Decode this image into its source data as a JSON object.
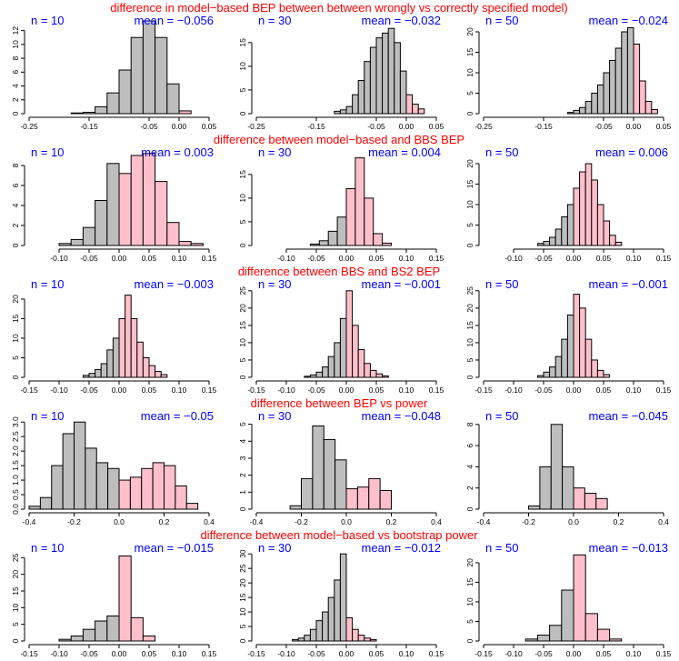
{
  "colors": {
    "negative": "#bebebe",
    "positive": "#ffc0cb",
    "title": "#ff0000",
    "label": "#0000ff"
  },
  "chart_data": [
    {
      "type": "histogram",
      "title": "difference in model−based BEP between between wrongly vs correctly specified model)",
      "xlim": [
        -0.25,
        0.05
      ],
      "xticks": [
        "-0.25",
        "-0.15",
        "-0.05",
        "0.00",
        "0.05"
      ],
      "xtick_values": [
        -0.25,
        -0.15,
        -0.05,
        0.0,
        0.05
      ],
      "bin_width": 0.02,
      "panels": [
        {
          "n_label": "n = 10",
          "mean_label": "mean = −0.056",
          "ylim": [
            0,
            13
          ],
          "yticks": [
            "0",
            "2",
            "4",
            "6",
            "8",
            "10",
            "12"
          ],
          "ytick_values": [
            0,
            2,
            4,
            6,
            8,
            10,
            12
          ],
          "bin_start": -0.18,
          "counts": [
            0.1,
            0.2,
            1,
            3,
            6.3,
            11,
            13.4,
            11,
            4.3,
            0.4
          ]
        },
        {
          "n_label": "n = 30",
          "mean_label": "mean = −0.032",
          "ylim": [
            0,
            19
          ],
          "yticks": [
            "0",
            "5",
            "10",
            "15"
          ],
          "ytick_values": [
            0,
            5,
            10,
            15
          ],
          "bin_start": -0.12,
          "bin_width": 0.01,
          "counts": [
            0.5,
            0.8,
            1.5,
            4,
            7,
            11,
            14,
            16,
            17,
            18,
            15,
            9,
            4,
            2,
            1
          ]
        },
        {
          "n_label": "n = 50",
          "mean_label": "mean = −0.024",
          "ylim": [
            0,
            22
          ],
          "yticks": [
            "0",
            "5",
            "10",
            "15",
            "20"
          ],
          "ytick_values": [
            0,
            5,
            10,
            15,
            20
          ],
          "bin_start": -0.11,
          "bin_width": 0.01,
          "counts": [
            0.3,
            0.8,
            1.5,
            3,
            5,
            7,
            10,
            13,
            16,
            20,
            21,
            17,
            8,
            3,
            1
          ]
        }
      ]
    },
    {
      "type": "histogram",
      "title": "difference between model−based and BBS BEP",
      "xlim": [
        -0.15,
        0.15
      ],
      "xticks": [
        "-0.10",
        "-0.05",
        "0.00",
        "0.05",
        "0.10",
        "0.15"
      ],
      "xtick_values": [
        -0.1,
        -0.05,
        0.0,
        0.05,
        0.1,
        0.15
      ],
      "panels": [
        {
          "n_label": "n = 10",
          "mean_label": "mean = 0.003",
          "ylim": [
            0,
            9
          ],
          "yticks": [
            "0",
            "2",
            "4",
            "6",
            "8"
          ],
          "ytick_values": [
            0,
            2,
            4,
            6,
            8
          ],
          "bin_start": -0.1,
          "bin_width": 0.02,
          "counts": [
            0.2,
            0.6,
            1.8,
            4.5,
            8.2,
            7.2,
            9,
            9.2,
            6.4,
            2.3,
            0.4,
            0.2
          ]
        },
        {
          "n_label": "n = 30",
          "mean_label": "mean = 0.004",
          "ylim": [
            0,
            19
          ],
          "yticks": [
            "0",
            "5",
            "10",
            "15"
          ],
          "ytick_values": [
            0,
            5,
            10,
            15
          ],
          "bin_start": -0.06,
          "bin_width": 0.015,
          "counts": [
            0.3,
            1,
            3,
            6,
            12,
            18.5,
            10,
            2.5,
            0.5
          ]
        },
        {
          "n_label": "n = 50",
          "mean_label": "mean = 0.006",
          "ylim": [
            0,
            22
          ],
          "yticks": [
            "0",
            "5",
            "10",
            "15",
            "20"
          ],
          "ytick_values": [
            0,
            5,
            10,
            15,
            20
          ],
          "bin_start": -0.06,
          "bin_width": 0.01,
          "counts": [
            0.5,
            1,
            2,
            4,
            7,
            10,
            14,
            18,
            20,
            16,
            10,
            6,
            2.5,
            0.8
          ]
        }
      ]
    },
    {
      "type": "histogram",
      "title": "difference between BBS and BS2 BEP",
      "xlim": [
        -0.15,
        0.15
      ],
      "xticks": [
        "-0.15",
        "-0.10",
        "-0.05",
        "0.00",
        "0.05",
        "0.10",
        "0.15"
      ],
      "xtick_values": [
        -0.15,
        -0.1,
        -0.05,
        0.0,
        0.05,
        0.1,
        0.15
      ],
      "panels": [
        {
          "n_label": "n = 10",
          "mean_label": "mean = −0.003",
          "ylim": [
            0,
            23
          ],
          "yticks": [
            "0",
            "5",
            "10",
            "15",
            "20"
          ],
          "ytick_values": [
            0,
            5,
            10,
            15,
            20
          ],
          "bin_start": -0.06,
          "bin_width": 0.01,
          "counts": [
            0.5,
            1,
            2,
            3.5,
            7,
            10,
            15,
            21,
            15,
            9,
            5,
            3,
            1.5,
            0.7
          ]
        },
        {
          "n_label": "n = 30",
          "mean_label": "mean = −0.001",
          "ylim": [
            0,
            26
          ],
          "yticks": [
            "0",
            "5",
            "10",
            "15",
            "20",
            "25"
          ],
          "ytick_values": [
            0,
            5,
            10,
            15,
            20,
            25
          ],
          "bin_start": -0.07,
          "bin_width": 0.01,
          "counts": [
            0.3,
            0.7,
            1.5,
            3,
            6,
            10,
            17,
            25,
            15,
            8,
            4,
            2,
            1,
            0.4
          ]
        },
        {
          "n_label": "n = 50",
          "mean_label": "mean = −0.001",
          "ylim": [
            0,
            26
          ],
          "yticks": [
            "0",
            "5",
            "10",
            "15",
            "20",
            "25"
          ],
          "ytick_values": [
            0,
            5,
            10,
            15,
            20,
            25
          ],
          "bin_start": -0.06,
          "bin_width": 0.01,
          "counts": [
            0.5,
            1.5,
            3,
            6,
            11,
            18,
            24,
            20,
            11,
            5,
            2,
            0.8
          ]
        }
      ]
    },
    {
      "type": "histogram",
      "title": "difference between BEP vs power",
      "xlim": [
        -0.4,
        0.4
      ],
      "xticks": [
        "-0.4",
        "-0.2",
        "0.0",
        "0.2",
        "0.4"
      ],
      "xtick_values": [
        -0.4,
        -0.2,
        0.0,
        0.2,
        0.4
      ],
      "panels": [
        {
          "n_label": "n = 10",
          "mean_label": "mean = −0.05",
          "ylim": [
            0,
            3.1
          ],
          "yticks": [
            "0.0",
            "0.5",
            "1.0",
            "1.5",
            "2.0",
            "2.5",
            "3.0"
          ],
          "ytick_values": [
            0,
            0.5,
            1,
            1.5,
            2,
            2.5,
            3
          ],
          "bin_start": -0.4,
          "bin_width": 0.05,
          "counts": [
            0.1,
            0.4,
            1.5,
            2.6,
            3.0,
            2.1,
            1.6,
            1.4,
            1.0,
            1.1,
            1.4,
            1.6,
            1.5,
            0.8,
            0.2
          ]
        },
        {
          "n_label": "n = 30",
          "mean_label": "mean = −0.048",
          "ylim": [
            0,
            5.3
          ],
          "yticks": [
            "0",
            "1",
            "2",
            "3",
            "4",
            "5"
          ],
          "ytick_values": [
            0,
            1,
            2,
            3,
            4,
            5
          ],
          "bin_start": -0.25,
          "bin_width": 0.05,
          "counts": [
            0.2,
            1.8,
            4.9,
            4.1,
            2.9,
            1.2,
            1.3,
            1.8,
            1.1
          ]
        },
        {
          "n_label": "n = 50",
          "mean_label": "mean = −0.045",
          "ylim": [
            0,
            8.5
          ],
          "yticks": [
            "0",
            "2",
            "4",
            "6",
            "8"
          ],
          "ytick_values": [
            0,
            2,
            4,
            6,
            8
          ],
          "bin_start": -0.2,
          "bin_width": 0.05,
          "counts": [
            0.3,
            4,
            8,
            4,
            2,
            1.5,
            1
          ]
        }
      ]
    },
    {
      "type": "histogram",
      "title": "difference between model−based vs bootstrap power",
      "xlim": [
        -0.15,
        0.15
      ],
      "xticks": [
        "-0.15",
        "-0.10",
        "-0.05",
        "0.00",
        "0.05",
        "0.10",
        "0.15"
      ],
      "xtick_values": [
        -0.15,
        -0.1,
        -0.05,
        0.0,
        0.05,
        0.1,
        0.15
      ],
      "panels": [
        {
          "n_label": "n = 10",
          "mean_label": "mean = −0.015",
          "ylim": [
            0,
            27
          ],
          "yticks": [
            "0",
            "5",
            "10",
            "15",
            "20",
            "25"
          ],
          "ytick_values": [
            0,
            5,
            10,
            15,
            20,
            25
          ],
          "bin_start": -0.1,
          "bin_width": 0.02,
          "counts": [
            0.5,
            1.5,
            3.5,
            6,
            7.5,
            25.5,
            7,
            1.5
          ]
        },
        {
          "n_label": "n = 30",
          "mean_label": "mean = −0.012",
          "ylim": [
            0,
            31
          ],
          "yticks": [
            "0",
            "5",
            "10",
            "15",
            "20",
            "25",
            "30"
          ],
          "ytick_values": [
            0,
            5,
            10,
            15,
            20,
            25,
            30
          ],
          "bin_start": -0.09,
          "bin_width": 0.01,
          "counts": [
            0.5,
            1,
            2,
            4,
            7,
            10,
            15,
            21,
            30,
            8,
            4,
            2,
            1,
            0.5
          ]
        },
        {
          "n_label": "n = 50",
          "mean_label": "mean = −0.013",
          "ylim": [
            0,
            23
          ],
          "yticks": [
            "0",
            "5",
            "10",
            "15",
            "20"
          ],
          "ytick_values": [
            0,
            5,
            10,
            15,
            20
          ],
          "bin_start": -0.08,
          "bin_width": 0.02,
          "counts": [
            0.5,
            1.5,
            4,
            13,
            22,
            7,
            3,
            0.5
          ]
        }
      ]
    }
  ]
}
